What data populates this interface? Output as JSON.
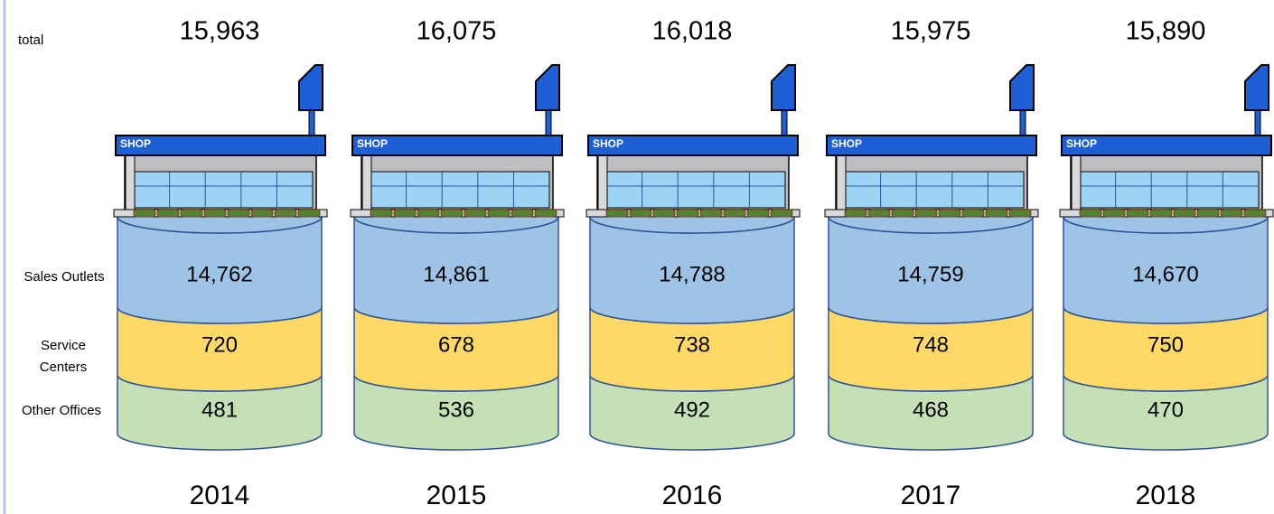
{
  "chart_data": {
    "type": "stacked-cylinder",
    "categories": [
      "2014",
      "2015",
      "2016",
      "2017",
      "2018"
    ],
    "series": [
      {
        "name": "Sales Outlets",
        "color": "#9dc3e6",
        "values": [
          14762,
          14861,
          14788,
          14759,
          14670
        ],
        "value_labels": [
          "14,762",
          "14,861",
          "14,788",
          "14,759",
          "14,670"
        ]
      },
      {
        "name": "Service Centers",
        "color": "#ffd966",
        "values": [
          720,
          678,
          738,
          748,
          750
        ]
      },
      {
        "name": "Other Offices",
        "color": "#c5e0b4",
        "values": [
          481,
          536,
          492,
          468,
          470
        ]
      }
    ],
    "total": {
      "name": "total",
      "values": [
        15963,
        16075,
        16018,
        15975,
        15890
      ],
      "value_labels": [
        "15,963",
        "16,075",
        "16,018",
        "15,975",
        "15,890"
      ]
    },
    "icon_label": "SHOP"
  }
}
